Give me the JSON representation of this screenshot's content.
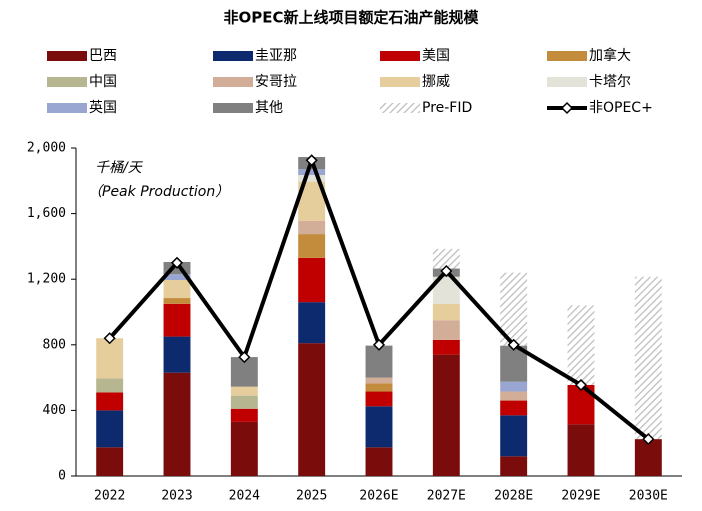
{
  "chart_data": {
    "type": "stacked_bar_line",
    "title": "非OPEC新上线项目额定石油产能规模",
    "annotations": [
      "千桶/天",
      "（Peak Production）"
    ],
    "categories": [
      "2022",
      "2023",
      "2024",
      "2025",
      "2026E",
      "2027E",
      "2028E",
      "2029E",
      "2030E"
    ],
    "series": [
      {
        "name": "巴西",
        "color": "#7b0c0c",
        "values": [
          175,
          630,
          330,
          810,
          175,
          740,
          120,
          315,
          225
        ]
      },
      {
        "name": "圭亚那",
        "color": "#0e2a6e",
        "values": [
          225,
          220,
          0,
          250,
          250,
          0,
          250,
          0,
          0
        ]
      },
      {
        "name": "美国",
        "color": "#c00000",
        "values": [
          110,
          200,
          80,
          270,
          90,
          90,
          90,
          240,
          0
        ]
      },
      {
        "name": "加拿大",
        "color": "#c38b3c",
        "values": [
          0,
          35,
          0,
          145,
          50,
          0,
          0,
          0,
          0
        ]
      },
      {
        "name": "中国",
        "color": "#b6b690",
        "values": [
          85,
          0,
          80,
          0,
          0,
          0,
          0,
          0,
          0
        ]
      },
      {
        "name": "安哥拉",
        "color": "#d2ae98",
        "values": [
          0,
          0,
          0,
          80,
          35,
          120,
          55,
          0,
          0
        ]
      },
      {
        "name": "挪威",
        "color": "#e6cd9c",
        "values": [
          245,
          110,
          55,
          240,
          0,
          100,
          0,
          0,
          0
        ]
      },
      {
        "name": "卡塔尔",
        "color": "#e3e3da",
        "values": [
          0,
          0,
          0,
          40,
          0,
          165,
          0,
          0,
          0
        ]
      },
      {
        "name": "英国",
        "color": "#9aa6d2",
        "values": [
          0,
          35,
          0,
          35,
          0,
          0,
          60,
          0,
          0
        ]
      },
      {
        "name": "其他",
        "color": "#808080",
        "values": [
          0,
          75,
          180,
          75,
          195,
          50,
          220,
          0,
          0
        ]
      },
      {
        "name": "Pre-FID",
        "color": "#bdbdbd",
        "hatch": true,
        "values": [
          0,
          0,
          0,
          0,
          0,
          120,
          445,
          485,
          990
        ]
      },
      {
        "name": "非OPEC+",
        "color": "#000000",
        "type": "line",
        "values": [
          840,
          1300,
          725,
          1925,
          800,
          1250,
          800,
          555,
          225
        ]
      }
    ],
    "ylim": [
      0,
      2000
    ],
    "yticks": [
      0,
      400,
      800,
      {
        "value": 1200,
        "label": "1,200"
      },
      {
        "value": 1600,
        "label": "1,600"
      },
      {
        "value": 2000,
        "label": "2,000"
      }
    ],
    "grid": false
  }
}
